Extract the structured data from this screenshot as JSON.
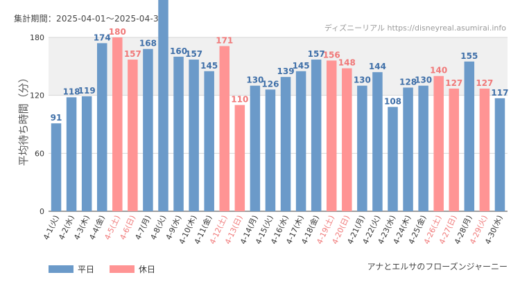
{
  "header": {
    "period": "集計期間：2025-04-01～2025-04-30",
    "credit": "ディズニーリアル https://disneyreal.asumirai.info"
  },
  "footer": {
    "attraction": "アナとエルサのフローズンジャーニー"
  },
  "legend": {
    "weekday_label": "平日",
    "holiday_label": "休日"
  },
  "colors": {
    "weekday": "#6b9ac9",
    "holiday": "#ff9494",
    "weekday_text": "#3f6fa8",
    "holiday_text": "#f07878"
  },
  "chart_data": {
    "type": "bar",
    "ylabel": "平均待ち時間（分）",
    "ylim": [
      0,
      190
    ],
    "yticks": [
      0,
      60,
      120,
      180
    ],
    "categories": [
      "4-1(火)",
      "4-2(水)",
      "4-3(木)",
      "4-4(金)",
      "4-5(土)",
      "4-6(日)",
      "4-7(月)",
      "4-8(火)",
      "4-9(水)",
      "4-10(木)",
      "4-11(金)",
      "4-12(土)",
      "4-13(日)",
      "4-14(月)",
      "4-15(火)",
      "4-16(水)",
      "4-17(木)",
      "4-18(金)",
      "4-19(土)",
      "4-20(日)",
      "4-21(月)",
      "4-22(火)",
      "4-23(水)",
      "4-24(木)",
      "4-25(金)",
      "4-26(土)",
      "4-27(日)",
      "4-28(月)",
      "4-29(火)",
      "4-30(水)"
    ],
    "values": [
      91,
      118,
      119,
      174,
      180,
      157,
      168,
      null,
      160,
      157,
      145,
      171,
      110,
      130,
      126,
      139,
      145,
      157,
      156,
      148,
      130,
      144,
      108,
      128,
      130,
      140,
      127,
      155,
      127,
      117
    ],
    "holiday": [
      false,
      false,
      false,
      false,
      true,
      true,
      false,
      false,
      false,
      false,
      false,
      true,
      true,
      false,
      false,
      false,
      false,
      false,
      true,
      true,
      false,
      false,
      false,
      false,
      false,
      true,
      true,
      false,
      true,
      false
    ],
    "grid": true
  }
}
